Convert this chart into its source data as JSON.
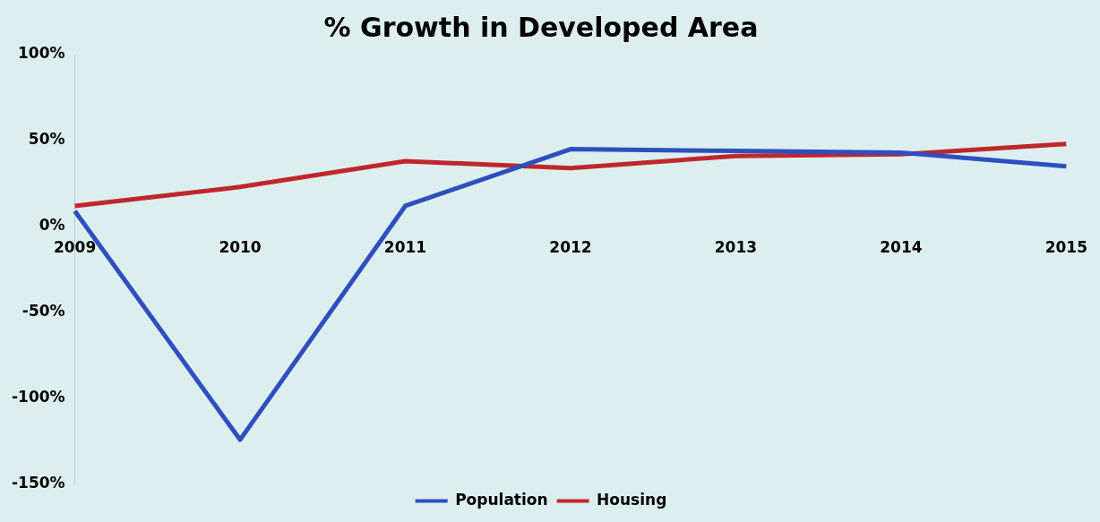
{
  "chart_data": {
    "type": "line",
    "title": "% Growth in Developed Area",
    "categories": [
      "2009",
      "2010",
      "2011",
      "2012",
      "2013",
      "2014",
      "2015"
    ],
    "series": [
      {
        "name": "Population",
        "color": "#2e4fbf",
        "values": [
          9,
          -124,
          12,
          45,
          44,
          43,
          35
        ]
      },
      {
        "name": "Housing",
        "color": "#c0272d",
        "values": [
          12,
          23,
          38,
          34,
          41,
          42,
          48
        ]
      }
    ],
    "ylim": [
      -150,
      100
    ],
    "yticks": [
      {
        "value": -150,
        "label": "-150%"
      },
      {
        "value": -100,
        "label": "-100%"
      },
      {
        "value": -50,
        "label": "-50%"
      },
      {
        "value": 0,
        "label": "0%"
      },
      {
        "value": 50,
        "label": "50%"
      },
      {
        "value": 100,
        "label": "100%"
      }
    ],
    "grid": false,
    "legend": "bottom",
    "marker": "none",
    "line_style": "solid"
  }
}
